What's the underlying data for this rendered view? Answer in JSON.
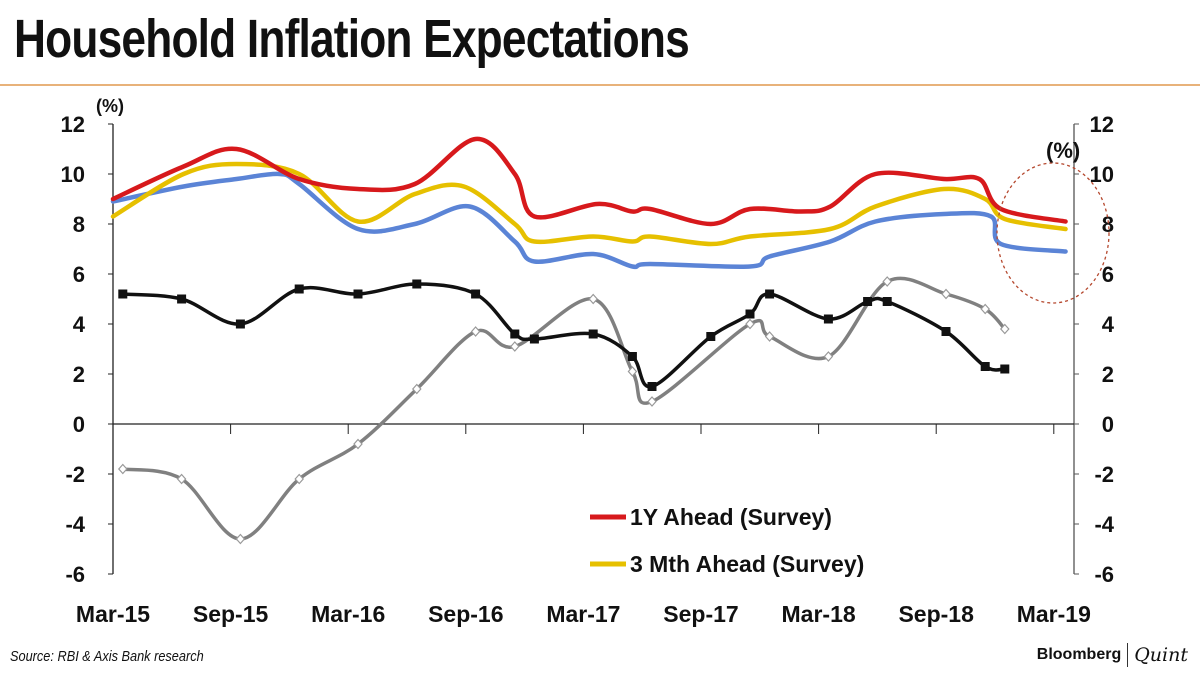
{
  "header": {
    "title": "Household Inflation Expectations"
  },
  "footer": {
    "source": "Source: RBI & Axis Bank research",
    "logo_left": "Bloomberg",
    "logo_right": "Quint"
  },
  "chart_data": {
    "type": "line",
    "title": "Household Inflation Expectations",
    "x_unit": "months since Mar-15",
    "xlim": [
      0,
      48
    ],
    "x_ticks": [
      0,
      6,
      12,
      18,
      24,
      30,
      36,
      42,
      48
    ],
    "x_tick_labels": [
      "Mar-15",
      "Sep-15",
      "Mar-16",
      "Sep-16",
      "Mar-17",
      "Sep-17",
      "Mar-18",
      "Sep-18",
      "Mar-19"
    ],
    "ylim": [
      -6,
      12
    ],
    "y_ticks": [
      -6,
      -4,
      -2,
      0,
      2,
      4,
      6,
      8,
      10,
      12
    ],
    "y_tick_labels": [
      "-6",
      "-4",
      "-2",
      "0",
      "2",
      "4",
      "6",
      "8",
      "10",
      "12"
    ],
    "ylabel_left": "(%)",
    "ylabel_right": "(%)",
    "legend_placement": "bottom-center",
    "series": [
      {
        "name": "1Y Ahead (Survey)",
        "color": "#d7191c",
        "marker": "none",
        "in_legend": true,
        "x": [
          0,
          3.6,
          6.3,
          9.5,
          12.5,
          15.4,
          18.5,
          20.5,
          21.5,
          24.7,
          26.5,
          27.4,
          30.5,
          32.5,
          35.1,
          36.6,
          38.9,
          42.4,
          44.2,
          45.3,
          48.6
        ],
        "y": [
          9.0,
          10.3,
          11.0,
          9.8,
          9.4,
          9.6,
          11.4,
          10.0,
          8.3,
          8.8,
          8.5,
          8.6,
          8.0,
          8.6,
          8.5,
          8.7,
          10.0,
          9.8,
          9.8,
          8.6,
          8.1
        ]
      },
      {
        "name": "3 Mth Ahead (Survey)",
        "color": "#e6c000",
        "marker": "none",
        "in_legend": true,
        "x": [
          0,
          3.6,
          6.3,
          9.5,
          12.5,
          15.4,
          17.9,
          20.5,
          21.5,
          24.5,
          26.5,
          27.4,
          30.5,
          32.5,
          36.6,
          38.9,
          42.4,
          44.5,
          45.5,
          48.6
        ],
        "y": [
          8.3,
          10.0,
          10.4,
          10.0,
          8.1,
          9.2,
          9.5,
          8.0,
          7.3,
          7.5,
          7.3,
          7.5,
          7.2,
          7.5,
          7.8,
          8.7,
          9.4,
          9.0,
          8.2,
          7.8
        ]
      },
      {
        "name": null,
        "color": "#5b84d6",
        "marker": "none",
        "in_legend": false,
        "x": [
          0,
          3.6,
          6.3,
          8.5,
          9.5,
          12.5,
          15.4,
          18.2,
          20.5,
          21.5,
          24.5,
          26.5,
          27.4,
          32.5,
          33.5,
          36.6,
          38.9,
          42.4,
          44.8,
          45.3,
          48.6
        ],
        "y": [
          8.9,
          9.5,
          9.8,
          10.0,
          9.6,
          7.8,
          8.0,
          8.7,
          7.3,
          6.5,
          6.8,
          6.3,
          6.4,
          6.3,
          6.7,
          7.3,
          8.1,
          8.4,
          8.3,
          7.2,
          6.9
        ]
      },
      {
        "name": null,
        "color": "#111111",
        "marker": "square",
        "in_legend": false,
        "x": [
          0.5,
          3.5,
          6.5,
          9.5,
          12.5,
          15.5,
          18.5,
          20.5,
          21.5,
          24.5,
          26.5,
          27.5,
          30.5,
          32.5,
          33.5,
          36.5,
          38.5,
          39.5,
          42.5,
          44.5,
          45.5
        ],
        "y": [
          5.2,
          5.0,
          4.0,
          5.4,
          5.2,
          5.6,
          5.2,
          3.6,
          3.4,
          3.6,
          2.7,
          1.5,
          3.5,
          4.4,
          5.2,
          4.2,
          4.9,
          4.9,
          3.7,
          2.3,
          2.2
        ]
      },
      {
        "name": null,
        "color": "#808080",
        "marker": "diamond",
        "in_legend": false,
        "x": [
          0.5,
          3.5,
          6.5,
          9.5,
          12.5,
          15.5,
          18.5,
          20.5,
          24.5,
          26.5,
          27.5,
          32.5,
          33.5,
          36.5,
          39.5,
          42.5,
          44.5,
          45.5
        ],
        "y": [
          -1.8,
          -2.2,
          -4.6,
          -2.2,
          -0.8,
          1.4,
          3.7,
          3.1,
          5.0,
          2.1,
          0.9,
          4.0,
          3.5,
          2.7,
          5.7,
          5.2,
          4.6,
          3.8
        ]
      }
    ]
  }
}
